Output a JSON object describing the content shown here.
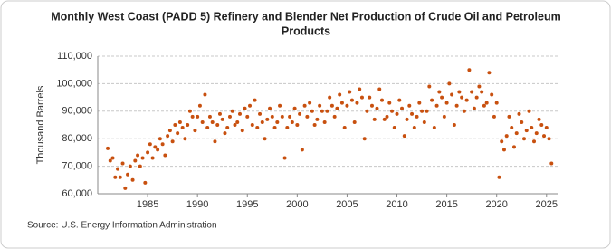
{
  "chart_data": {
    "type": "scatter",
    "title": "Monthly West Coast (PADD 5) Refinery and Blender Net Production of Crude Oil and Petroleum",
    "title_line2": "Products",
    "ylabel": "Thousand Barrels",
    "source": "Source: U.S. Energy Information Administration",
    "color": "#c8500f",
    "grid": true,
    "xlim": [
      1980,
      2026.2
    ],
    "ylim": [
      60000,
      110000
    ],
    "xticks": [
      1985,
      1990,
      1995,
      2000,
      2005,
      2010,
      2015,
      2020,
      2025
    ],
    "yticks": [
      {
        "value": 60000,
        "label": "60,000"
      },
      {
        "value": 70000,
        "label": "70,000"
      },
      {
        "value": 80000,
        "label": "80,000"
      },
      {
        "value": 90000,
        "label": "90,000"
      },
      {
        "value": 100000,
        "label": "100,000"
      },
      {
        "value": 110000,
        "label": "110,000"
      }
    ],
    "x": [
      1981,
      1981.25,
      1981.5,
      1981.75,
      1982,
      1982.25,
      1982.5,
      1982.75,
      1983,
      1983.25,
      1983.5,
      1983.75,
      1984,
      1984.25,
      1984.5,
      1984.75,
      1985,
      1985.25,
      1985.5,
      1985.75,
      1986,
      1986.25,
      1986.5,
      1986.75,
      1987,
      1987.25,
      1987.5,
      1987.75,
      1988,
      1988.25,
      1988.5,
      1988.75,
      1989,
      1989.25,
      1989.5,
      1989.75,
      1990,
      1990.25,
      1990.5,
      1990.75,
      1991,
      1991.25,
      1991.5,
      1991.75,
      1992,
      1992.25,
      1992.5,
      1992.75,
      1993,
      1993.25,
      1993.5,
      1993.75,
      1994,
      1994.25,
      1994.5,
      1994.75,
      1995,
      1995.25,
      1995.5,
      1995.75,
      1996,
      1996.25,
      1996.5,
      1996.75,
      1997,
      1997.25,
      1997.5,
      1997.75,
      1998,
      1998.25,
      1998.5,
      1998.75,
      1999,
      1999.25,
      1999.5,
      1999.75,
      2000,
      2000.25,
      2000.5,
      2000.75,
      2001,
      2001.25,
      2001.5,
      2001.75,
      2002,
      2002.25,
      2002.5,
      2002.75,
      2003,
      2003.25,
      2003.5,
      2003.75,
      2004,
      2004.25,
      2004.5,
      2004.75,
      2005,
      2005.25,
      2005.5,
      2005.75,
      2006,
      2006.25,
      2006.5,
      2006.75,
      2007,
      2007.25,
      2007.5,
      2007.75,
      2008,
      2008.25,
      2008.5,
      2008.75,
      2009,
      2009.25,
      2009.5,
      2009.75,
      2010,
      2010.25,
      2010.5,
      2010.75,
      2011,
      2011.25,
      2011.5,
      2011.75,
      2012,
      2012.25,
      2012.5,
      2012.75,
      2013,
      2013.25,
      2013.5,
      2013.75,
      2014,
      2014.25,
      2014.5,
      2014.75,
      2015,
      2015.25,
      2015.5,
      2015.75,
      2016,
      2016.25,
      2016.5,
      2016.75,
      2017,
      2017.25,
      2017.5,
      2017.75,
      2018,
      2018.25,
      2018.5,
      2018.75,
      2019,
      2019.25,
      2019.5,
      2019.75,
      2020,
      2020.25,
      2020.5,
      2020.75,
      2021,
      2021.25,
      2021.5,
      2021.75,
      2022,
      2022.25,
      2022.5,
      2022.75,
      2023,
      2023.25,
      2023.5,
      2023.75,
      2024,
      2024.25,
      2024.5,
      2024.75,
      2025,
      2025.25,
      2025.5
    ],
    "values": [
      76500,
      72000,
      73000,
      66000,
      69000,
      66000,
      71000,
      62000,
      67000,
      70000,
      65000,
      72000,
      74000,
      70000,
      73000,
      64000,
      75000,
      78000,
      73000,
      77000,
      76000,
      80000,
      78000,
      74000,
      81000,
      83000,
      79000,
      85000,
      82000,
      86000,
      84000,
      80000,
      85000,
      90000,
      88000,
      83000,
      88000,
      92000,
      86000,
      96000,
      84000,
      88000,
      86000,
      79000,
      85000,
      89000,
      87000,
      82000,
      84000,
      88000,
      90000,
      85000,
      86000,
      89000,
      83000,
      91000,
      88000,
      92000,
      85000,
      94000,
      84000,
      89000,
      86000,
      80000,
      87000,
      91000,
      88000,
      84000,
      86000,
      92000,
      88000,
      73000,
      84000,
      88000,
      86000,
      91000,
      85000,
      89000,
      76000,
      92000,
      88000,
      93000,
      90000,
      85000,
      87000,
      92000,
      90000,
      86000,
      90000,
      95000,
      92000,
      88000,
      91000,
      96000,
      93000,
      84000,
      92000,
      97000,
      94000,
      86000,
      93000,
      98000,
      95000,
      80000,
      90000,
      95000,
      92000,
      87000,
      91000,
      98000,
      94000,
      87000,
      88000,
      93000,
      90000,
      84000,
      89000,
      94000,
      91000,
      81000,
      87000,
      92000,
      89000,
      84000,
      88000,
      93000,
      90000,
      86000,
      90000,
      99000,
      94000,
      84000,
      92000,
      97000,
      95000,
      88000,
      93000,
      100000,
      96000,
      85000,
      92000,
      97000,
      95000,
      90000,
      94000,
      105000,
      97000,
      91000,
      95000,
      99000,
      97000,
      92000,
      93000,
      104000,
      96000,
      88000,
      93000,
      66000,
      79000,
      76000,
      81000,
      88000,
      84000,
      77000,
      82000,
      89000,
      86000,
      80000,
      83000,
      90000,
      84000,
      79000,
      82000,
      87000,
      85000,
      81000,
      84000,
      80000,
      71000
    ]
  }
}
